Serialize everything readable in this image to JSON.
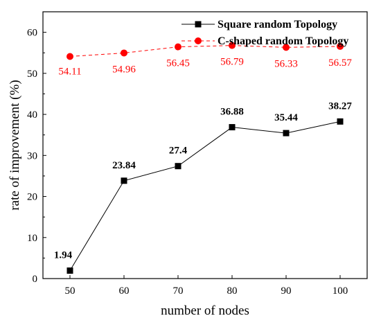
{
  "chart_data": {
    "type": "line",
    "xlabel": "number of nodes",
    "ylabel": "rate of improvement (%)",
    "x": [
      50,
      60,
      70,
      80,
      90,
      100
    ],
    "xlim": [
      45,
      105
    ],
    "ylim": [
      0,
      65
    ],
    "xticks": [
      50,
      60,
      70,
      80,
      90,
      100
    ],
    "yticks": [
      0,
      10,
      20,
      30,
      40,
      50,
      60
    ],
    "grid": false,
    "legend_position": "top-right",
    "series": [
      {
        "name": "Square random Topology",
        "values": [
          1.94,
          23.84,
          27.4,
          36.88,
          35.44,
          38.27
        ],
        "labels": [
          "1.94",
          "23.84",
          "27.4",
          "36.88",
          "35.44",
          "38.27"
        ],
        "color": "#000000",
        "line_style": "solid",
        "marker": "square"
      },
      {
        "name": "C-shaped random Topology",
        "values": [
          54.11,
          54.96,
          56.45,
          56.79,
          56.33,
          56.57
        ],
        "labels": [
          "54.11",
          "54.96",
          "56.45",
          "56.79",
          "56.33",
          "56.57"
        ],
        "color": "#ff0000",
        "line_style": "dashed",
        "marker": "circle"
      }
    ]
  }
}
